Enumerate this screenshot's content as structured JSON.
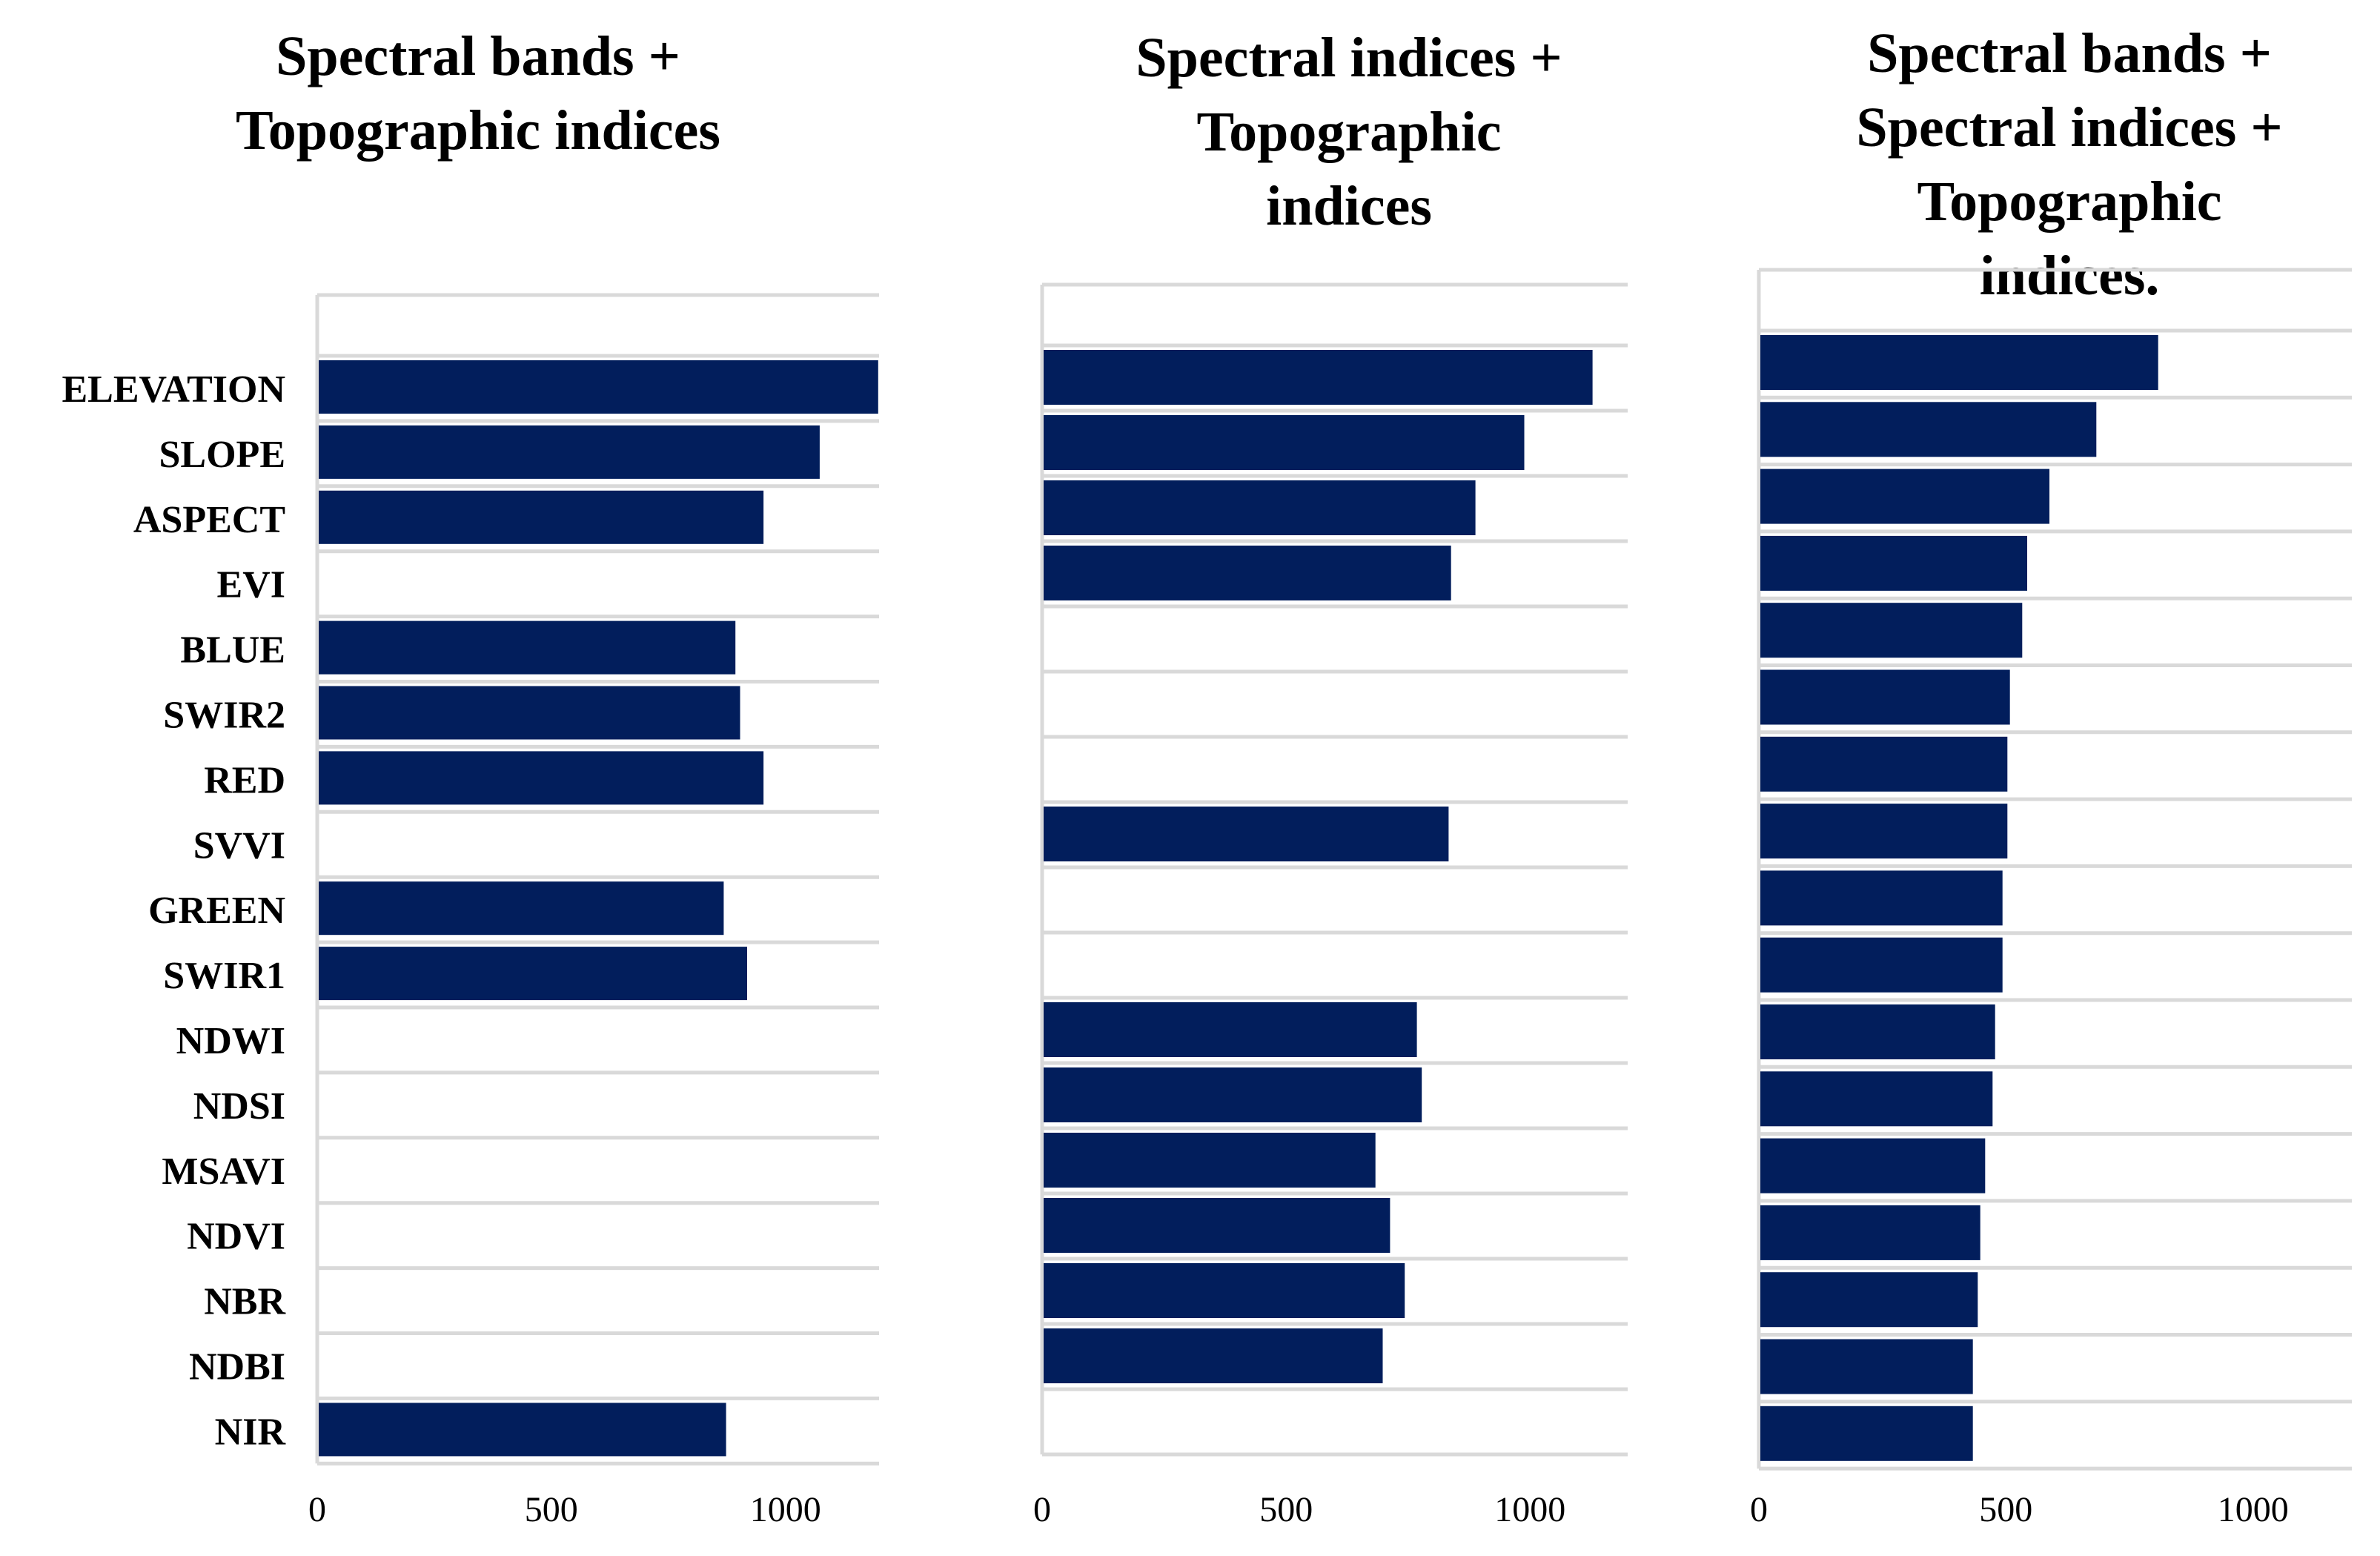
{
  "chart_data": [
    {
      "type": "bar",
      "orientation": "horizontal",
      "title_lines": [
        "Spectral bands +",
        "Topographic  indices"
      ],
      "categories": [
        "ELEVATION",
        "SLOPE",
        "ASPECT",
        "EVI",
        "BLUE",
        "SWIR2",
        "RED",
        "SVVI",
        "GREEN",
        "SWIR1",
        "NDWI",
        "NDSI",
        "MSAVI",
        "NDVI",
        "NBR",
        "NDBI",
        "NIR"
      ],
      "values": [
        1195,
        1070,
        950,
        null,
        890,
        900,
        950,
        null,
        865,
        915,
        null,
        null,
        null,
        null,
        null,
        null,
        870
      ],
      "xlim": [
        0,
        1200
      ],
      "xticks": [
        0,
        500,
        1000
      ],
      "xlabel": "",
      "ylabel": "",
      "grid": true,
      "show_category_labels": true,
      "bar_color": "#021e5c"
    },
    {
      "type": "bar",
      "orientation": "horizontal",
      "title_lines": [
        "Spectral  indices +",
        "Topographic",
        "indices"
      ],
      "categories": [
        "ELEVATION",
        "SLOPE",
        "ASPECT",
        "EVI",
        "BLUE",
        "SWIR2",
        "RED",
        "SVVI",
        "GREEN",
        "SWIR1",
        "NDWI",
        "NDSI",
        "MSAVI",
        "NDVI",
        "NBR",
        "NDBI",
        "NIR"
      ],
      "values": [
        1125,
        985,
        885,
        835,
        null,
        null,
        null,
        830,
        null,
        null,
        765,
        775,
        680,
        710,
        740,
        695,
        null
      ],
      "xlim": [
        0,
        1200
      ],
      "xticks": [
        0,
        500,
        1000
      ],
      "xlabel": "",
      "ylabel": "",
      "grid": true,
      "show_category_labels": false,
      "bar_color": "#021e5c"
    },
    {
      "type": "bar",
      "orientation": "horizontal",
      "title_lines": [
        "Spectral bands +",
        "Spectral indices +",
        "Topographic",
        "indices."
      ],
      "categories": [
        "ELEVATION",
        "SLOPE",
        "ASPECT",
        "EVI",
        "BLUE",
        "SWIR2",
        "RED",
        "SVVI",
        "GREEN",
        "SWIR1",
        "NDWI",
        "NDSI",
        "MSAVI",
        "NDVI",
        "NBR",
        "NDBI",
        "NIR"
      ],
      "values": [
        805,
        680,
        585,
        540,
        530,
        505,
        500,
        500,
        490,
        490,
        475,
        470,
        455,
        445,
        440,
        430,
        430
      ],
      "xlim": [
        0,
        1200
      ],
      "xticks": [
        0,
        500,
        1000
      ],
      "xlabel": "",
      "ylabel": "",
      "grid": true,
      "show_category_labels": false,
      "bar_color": "#021e5c"
    }
  ]
}
